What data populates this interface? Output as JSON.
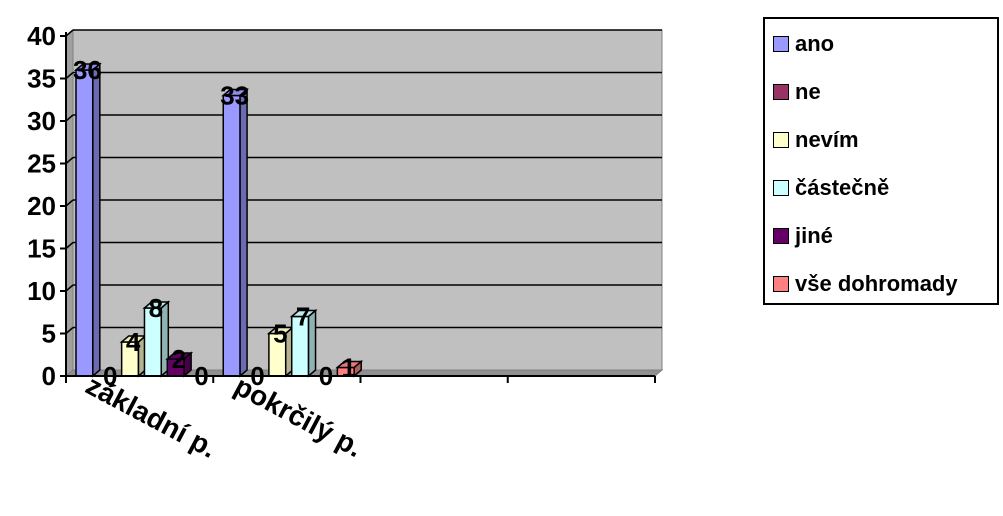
{
  "chart_data": {
    "type": "bar",
    "categories": [
      "základní p.",
      "pokrčilý p.",
      "",
      ""
    ],
    "series": [
      {
        "name": "ano",
        "values": [
          36,
          33,
          null,
          null
        ],
        "color": "#9999FF"
      },
      {
        "name": "ne",
        "values": [
          0,
          0,
          null,
          null
        ],
        "color": "#993366"
      },
      {
        "name": "nevím",
        "values": [
          4,
          5,
          null,
          null
        ],
        "color": "#FFFFCC"
      },
      {
        "name": "částečně",
        "values": [
          8,
          7,
          null,
          null
        ],
        "color": "#CCFFFF"
      },
      {
        "name": "jiné",
        "values": [
          2,
          0,
          null,
          null
        ],
        "color": "#660066"
      },
      {
        "name": "vše dohromady",
        "values": [
          0,
          1,
          null,
          null
        ],
        "color": "#FF8080"
      }
    ],
    "ylim": [
      0,
      40
    ],
    "yticks": [
      "0",
      "5",
      "10",
      "15",
      "20",
      "25",
      "30",
      "35",
      "40"
    ],
    "grid": true,
    "legend_position": "right",
    "plot_background": "#C0C0C0"
  }
}
